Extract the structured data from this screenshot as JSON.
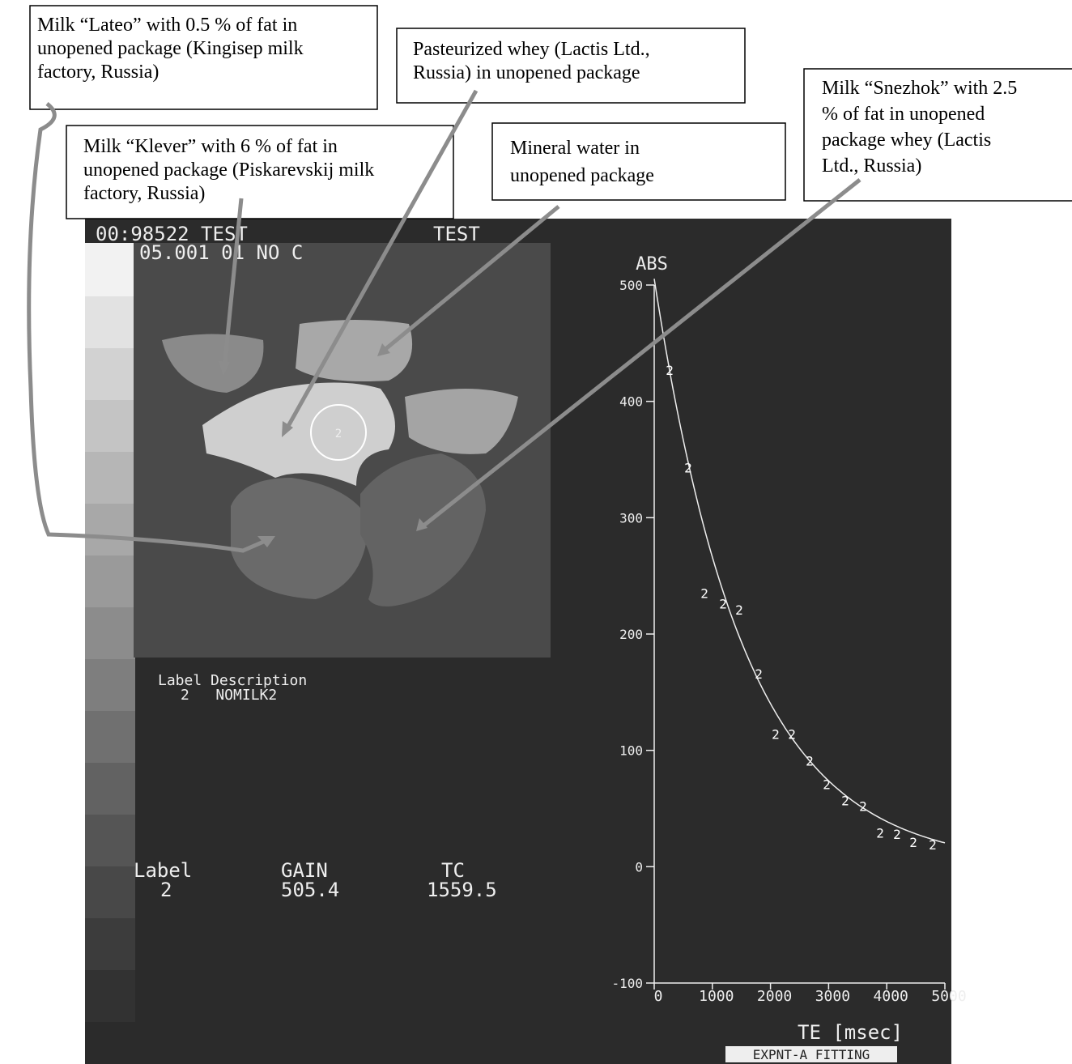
{
  "callouts": [
    {
      "lines": [
        "Milk “Lateo” with 0.5 % of fat in",
        "unopened package (Kingisep milk",
        "factory, Russia)"
      ]
    },
    {
      "lines": [
        "Pasteurized whey (Lactis Ltd.,",
        "Russia) in unopened package"
      ]
    },
    {
      "lines": [
        "Milk “Snezhok” with 2.5",
        "% of fat in unopened",
        "package whey (Lactis",
        "Ltd., Russia)"
      ]
    },
    {
      "lines": [
        "Milk “Klever” with 6 % of fat in",
        "unopened package (Piskarevskij milk",
        "factory, Russia)"
      ]
    },
    {
      "lines": [
        "Mineral water in",
        "unopened package"
      ]
    }
  ],
  "screen": {
    "header_left": "00:98522  TEST",
    "header_right": "TEST",
    "subheader": "05.001 01 NO C",
    "roi_label": "2",
    "legend_header": "Label Description",
    "legend_row": "2   NOMILK2"
  },
  "readout": {
    "label_header": "Label",
    "gain_header": "GAIN",
    "tc_header": "TC",
    "label": "2",
    "gain": 505.4,
    "tc": 1559.5
  },
  "chart_data": {
    "type": "scatter",
    "ylabel": "ABS",
    "xlabel": "TE  [msec]",
    "footer": "EXPNT-A FITTING",
    "xlim": [
      0,
      5000
    ],
    "ylim": [
      -100,
      500
    ],
    "xticks": [
      0,
      1000,
      2000,
      3000,
      4000,
      5000
    ],
    "yticks": [
      -100,
      0,
      100,
      200,
      300,
      400,
      500
    ],
    "series": [
      {
        "name": "2",
        "color": "#ffffff",
        "x": [
          265,
          585,
          864,
          1184,
          1462,
          1797,
          2089,
          2368,
          2674,
          2967,
          3287,
          3593,
          3886,
          4178,
          4457,
          4791
        ],
        "values": [
          427,
          343,
          235,
          226,
          221,
          166,
          114,
          114,
          91,
          71,
          57,
          52,
          29,
          28,
          21,
          19
        ]
      }
    ]
  }
}
